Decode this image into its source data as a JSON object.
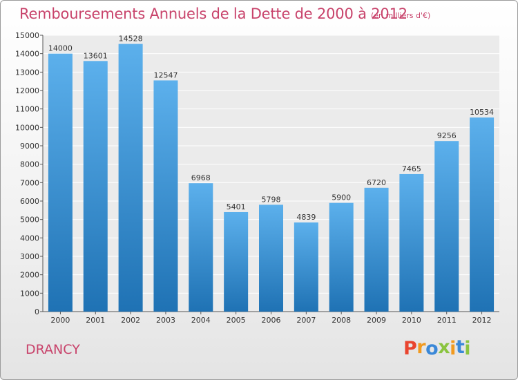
{
  "header": {
    "title": "Remboursements Annuels de la Dette de 2000 à 2012",
    "subtitle": "(en milliers d'€)"
  },
  "footer": {
    "city": "DRANCY",
    "logo_letters": [
      "P",
      "r",
      "o",
      "x",
      "i",
      "t",
      "i"
    ],
    "logo_colors": [
      "#e9452f",
      "#f19a20",
      "#3a88d8",
      "#8ac43f",
      "#f19a20",
      "#3a88d8",
      "#8ac43f"
    ]
  },
  "colors": {
    "bar_top": "#5cb0ec",
    "bar_bottom": "#1f72b4",
    "title": "#c8436b"
  },
  "chart_data": {
    "type": "bar",
    "categories": [
      "2000",
      "2001",
      "2002",
      "2003",
      "2004",
      "2005",
      "2006",
      "2007",
      "2008",
      "2009",
      "2010",
      "2011",
      "2012"
    ],
    "values": [
      14000,
      13601,
      14528,
      12547,
      6968,
      5401,
      5798,
      4839,
      5900,
      6720,
      7465,
      9256,
      10534
    ],
    "ylim": [
      0,
      15000
    ],
    "yticks": [
      0,
      1000,
      2000,
      3000,
      4000,
      5000,
      6000,
      7000,
      8000,
      9000,
      10000,
      11000,
      12000,
      13000,
      14000,
      15000
    ],
    "grid": true,
    "data_labels": true
  }
}
